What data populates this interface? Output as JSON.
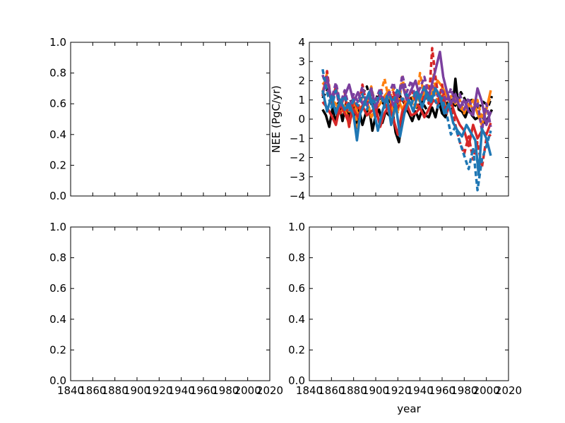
{
  "chart_data": [
    {
      "type": "line",
      "subplot": "top-left",
      "title": "",
      "xlabel": "",
      "ylabel": "",
      "xlim": [
        1840,
        2020
      ],
      "ylim": [
        0.0,
        1.0
      ],
      "xticks_visible": false,
      "yticks": [
        0.0,
        0.2,
        0.4,
        0.6,
        0.8,
        1.0
      ],
      "yticklabels": [
        "0.0",
        "0.2",
        "0.4",
        "0.6",
        "0.8",
        "1.0"
      ],
      "series": []
    },
    {
      "type": "line",
      "subplot": "top-right",
      "title": "",
      "xlabel": "",
      "ylabel": "NEE (PgC/yr)",
      "xlim": [
        1840,
        2020
      ],
      "ylim": [
        -4,
        4
      ],
      "xticks_visible": false,
      "yticks": [
        -4,
        -3,
        -2,
        -1,
        0,
        1,
        2,
        3,
        4
      ],
      "yticklabels": [
        "−4",
        "−3",
        "−2",
        "−1",
        "0",
        "1",
        "2",
        "3",
        "4"
      ],
      "grid": false,
      "legend": "none",
      "series": [
        {
          "color": "#000000",
          "dash": "solid",
          "x": [
            1852,
            1855,
            1858,
            1861,
            1864,
            1867,
            1870,
            1873,
            1876,
            1879,
            1882,
            1885,
            1888,
            1891,
            1894,
            1897,
            1900,
            1903,
            1906,
            1909,
            1912,
            1915,
            1918,
            1921,
            1924,
            1927,
            1930,
            1933,
            1936,
            1939,
            1942,
            1945,
            1948,
            1951,
            1954,
            1957,
            1960,
            1963,
            1966,
            1969,
            1972,
            1975,
            1978,
            1981,
            1984,
            1987,
            1990,
            1993,
            1996,
            1999,
            2002,
            2005
          ],
          "y": [
            0.5,
            0.2,
            -0.4,
            0.6,
            -0.2,
            0.7,
            -0.1,
            0.8,
            0.1,
            0.9,
            -0.5,
            0.5,
            -0.3,
            0.3,
            0.6,
            -0.6,
            0.2,
            0.5,
            -0.2,
            0.4,
            0.2,
            0.5,
            -0.7,
            -1.2,
            0.1,
            0.6,
            0.3,
            -0.1,
            0.4,
            0.0,
            0.5,
            0.2,
            0.1,
            0.6,
            0.1,
            0.9,
            0.3,
            0.1,
            0.7,
            0.3,
            2.1,
            0.5,
            0.4,
            0.1,
            0.6,
            0.2,
            0.0,
            0.1,
            0.2,
            -0.2,
            0.1,
            0.5
          ]
        },
        {
          "color": "#000000",
          "dash": "dashed",
          "x": [
            1852,
            1857,
            1862,
            1867,
            1872,
            1877,
            1882,
            1887,
            1892,
            1897,
            1902,
            1907,
            1912,
            1917,
            1922,
            1927,
            1932,
            1937,
            1942,
            1947,
            1952,
            1957,
            1962,
            1967,
            1972,
            1977,
            1982,
            1987,
            1992,
            1997,
            2002,
            2005
          ],
          "y": [
            1.1,
            1.6,
            0.5,
            0.9,
            0.3,
            1.0,
            0.4,
            1.2,
            1.7,
            0.6,
            1.3,
            0.8,
            1.0,
            0.5,
            1.2,
            0.7,
            1.1,
            0.6,
            0.9,
            0.4,
            1.0,
            0.8,
            0.5,
            1.1,
            0.7,
            1.4,
            0.9,
            1.0,
            0.5,
            0.9,
            0.7,
            1.2
          ]
        },
        {
          "color": "#ff7f0e",
          "dash": "solid",
          "x": [
            1852,
            1856,
            1860,
            1864,
            1868,
            1872,
            1876,
            1880,
            1884,
            1888,
            1892,
            1896,
            1900,
            1904,
            1908,
            1912,
            1916,
            1920,
            1924,
            1928,
            1932,
            1936,
            1940,
            1944,
            1948,
            1952,
            1956,
            1960,
            1964,
            1968,
            1972,
            1976,
            1980,
            1984,
            1988,
            1992,
            1996,
            2000,
            2004
          ],
          "y": [
            1.8,
            2.1,
            1.0,
            0.8,
            0.3,
            0.7,
            -0.4,
            1.0,
            0.2,
            0.6,
            1.0,
            0.1,
            0.5,
            0.8,
            1.2,
            1.5,
            0.2,
            1.1,
            0.5,
            1.0,
            0.7,
            1.3,
            0.9,
            1.6,
            1.0,
            1.5,
            2.0,
            1.7,
            1.2,
            0.8,
            1.1,
            0.6,
            0.4,
            0.7,
            1.0,
            0.3,
            -0.3,
            0.5,
            1.5
          ]
        },
        {
          "color": "#ff7f0e",
          "dash": "dashed",
          "x": [
            1852,
            1856,
            1860,
            1864,
            1868,
            1872,
            1876,
            1880,
            1884,
            1888,
            1892,
            1896,
            1900,
            1904,
            1908,
            1912,
            1916,
            1920,
            1924,
            1928,
            1932,
            1936,
            1940,
            1944,
            1948,
            1952,
            1956,
            1960,
            1964,
            1968,
            1972,
            1976,
            1980,
            1984,
            1988,
            1992,
            1996,
            2000,
            2004
          ],
          "y": [
            1.4,
            2.4,
            0.9,
            1.6,
            0.6,
            1.2,
            0.4,
            1.0,
            -0.5,
            1.4,
            0.8,
            1.7,
            0.6,
            1.2,
            2.1,
            1.0,
            1.6,
            0.3,
            2.2,
            0.9,
            1.5,
            0.5,
            2.4,
            1.1,
            1.8,
            2.3,
            0.9,
            1.6,
            0.4,
            1.2,
            0.8,
            1.0,
            0.3,
            0.9,
            0.5,
            1.0,
            0.0,
            0.6,
            1.2
          ]
        },
        {
          "color": "#d62728",
          "dash": "solid",
          "x": [
            1852,
            1856,
            1860,
            1864,
            1868,
            1872,
            1876,
            1880,
            1884,
            1888,
            1892,
            1896,
            1900,
            1904,
            1908,
            1912,
            1916,
            1920,
            1924,
            1928,
            1932,
            1936,
            1940,
            1944,
            1948,
            1952,
            1956,
            1960,
            1964,
            1968,
            1972,
            1976,
            1980,
            1984,
            1988,
            1992,
            1996,
            2000,
            2004
          ],
          "y": [
            0.9,
            0.6,
            0.2,
            -0.3,
            0.8,
            0.3,
            -0.2,
            0.5,
            0.1,
            0.7,
            0.2,
            0.4,
            0.6,
            -0.4,
            0.3,
            0.7,
            0.0,
            -0.8,
            0.4,
            0.8,
            0.2,
            0.3,
            0.6,
            0.1,
            0.5,
            1.0,
            0.8,
            1.2,
            0.3,
            0.9,
            0.2,
            -0.3,
            -0.6,
            -1.4,
            -0.3,
            -1.0,
            -0.6,
            -0.8,
            -0.2
          ]
        },
        {
          "color": "#d62728",
          "dash": "dashed",
          "x": [
            1852,
            1856,
            1860,
            1864,
            1868,
            1872,
            1876,
            1880,
            1884,
            1888,
            1892,
            1896,
            1900,
            1904,
            1908,
            1912,
            1916,
            1920,
            1924,
            1928,
            1932,
            1936,
            1940,
            1944,
            1948,
            1951,
            1954,
            1957,
            1960,
            1964,
            1968,
            1972,
            1976,
            1980,
            1984,
            1988,
            1992,
            1996,
            2000,
            2004
          ],
          "y": [
            1.2,
            2.5,
            0.8,
            1.7,
            0.3,
            1.4,
            -0.4,
            1.1,
            0.5,
            1.8,
            0.7,
            1.3,
            0.2,
            1.6,
            0.9,
            0.3,
            1.4,
            0.6,
            1.2,
            0.4,
            1.6,
            1.0,
            0.5,
            1.3,
            0.8,
            3.7,
            2.2,
            1.0,
            1.8,
            0.4,
            0.9,
            -0.3,
            -1.2,
            -1.8,
            -0.9,
            -2.1,
            -1.2,
            -2.5,
            -1.0,
            -0.8
          ]
        },
        {
          "color": "#7b3f9e",
          "dash": "solid",
          "x": [
            1852,
            1856,
            1860,
            1864,
            1868,
            1872,
            1876,
            1880,
            1884,
            1888,
            1892,
            1896,
            1900,
            1904,
            1908,
            1912,
            1916,
            1920,
            1924,
            1928,
            1932,
            1936,
            1940,
            1944,
            1948,
            1952,
            1955,
            1958,
            1961,
            1964,
            1968,
            1972,
            1976,
            1980,
            1984,
            1988,
            1992,
            1996,
            2000,
            2004
          ],
          "y": [
            1.3,
            2.2,
            1.0,
            1.5,
            0.7,
            1.2,
            1.8,
            0.9,
            1.4,
            0.8,
            1.1,
            1.6,
            0.6,
            1.3,
            0.9,
            1.4,
            0.7,
            1.2,
            1.8,
            1.0,
            1.5,
            2.0,
            1.1,
            1.7,
            1.2,
            2.1,
            2.8,
            3.5,
            2.2,
            1.5,
            0.8,
            1.3,
            0.6,
            1.0,
            0.4,
            0.2,
            1.6,
            0.9,
            -0.3,
            0.4
          ]
        },
        {
          "color": "#7b3f9e",
          "dash": "dashed",
          "x": [
            1852,
            1856,
            1860,
            1864,
            1868,
            1872,
            1876,
            1880,
            1884,
            1888,
            1892,
            1896,
            1900,
            1904,
            1908,
            1912,
            1916,
            1920,
            1924,
            1928,
            1932,
            1936,
            1940,
            1944,
            1948,
            1952,
            1956,
            1960,
            1964,
            1968,
            1972,
            1976,
            1980,
            1984,
            1988,
            1992,
            1996,
            2000,
            2004
          ],
          "y": [
            2.3,
            1.6,
            1.0,
            1.9,
            0.8,
            1.5,
            0.6,
            1.3,
            0.9,
            1.7,
            0.7,
            1.4,
            1.0,
            1.6,
            0.8,
            1.3,
            1.9,
            0.9,
            2.3,
            1.4,
            2.0,
            1.1,
            1.6,
            2.2,
            1.3,
            1.8,
            1.2,
            1.5,
            0.9,
            1.6,
            0.8,
            1.3,
            0.5,
            1.1,
            0.4,
            0.9,
            -0.6,
            0.8,
            -0.4
          ]
        },
        {
          "color": "#1f77b4",
          "dash": "solid",
          "x": [
            1852,
            1856,
            1860,
            1864,
            1868,
            1872,
            1876,
            1880,
            1883,
            1886,
            1890,
            1894,
            1898,
            1902,
            1906,
            1910,
            1914,
            1918,
            1922,
            1926,
            1930,
            1934,
            1938,
            1942,
            1946,
            1950,
            1954,
            1958,
            1962,
            1966,
            1970,
            1974,
            1978,
            1982,
            1986,
            1990,
            1993,
            1996,
            2000,
            2004
          ],
          "y": [
            1.5,
            0.4,
            1.2,
            0.3,
            1.0,
            0.5,
            0.8,
            0.2,
            -1.1,
            0.3,
            0.8,
            1.4,
            0.5,
            -0.6,
            0.4,
            1.2,
            -0.3,
            0.8,
            -0.9,
            0.3,
            1.0,
            0.4,
            1.3,
            0.6,
            1.4,
            0.9,
            1.6,
            1.2,
            0.3,
            0.8,
            -0.2,
            -0.6,
            -0.9,
            -0.3,
            -0.7,
            -1.1,
            -2.9,
            -0.5,
            -1.0,
            -1.9
          ]
        },
        {
          "color": "#1f77b4",
          "dash": "dashed",
          "x": [
            1852,
            1856,
            1860,
            1864,
            1868,
            1872,
            1876,
            1880,
            1884,
            1888,
            1892,
            1896,
            1900,
            1904,
            1908,
            1912,
            1916,
            1920,
            1924,
            1928,
            1932,
            1936,
            1940,
            1944,
            1948,
            1952,
            1956,
            1960,
            1964,
            1968,
            1972,
            1976,
            1980,
            1984,
            1988,
            1992,
            1996,
            2000,
            2004
          ],
          "y": [
            2.6,
            1.4,
            0.6,
            1.5,
            0.9,
            1.2,
            0.4,
            1.0,
            0.7,
            1.3,
            0.5,
            1.1,
            0.8,
            1.4,
            0.6,
            1.2,
            0.9,
            1.6,
            1.0,
            1.3,
            0.7,
            1.5,
            1.1,
            1.7,
            0.9,
            1.4,
            0.6,
            1.1,
            0.3,
            -0.8,
            -0.4,
            -1.2,
            -1.9,
            -2.6,
            -1.5,
            -3.7,
            -2.1,
            -1.4,
            -0.6
          ]
        }
      ]
    },
    {
      "type": "line",
      "subplot": "bottom-left",
      "title": "",
      "xlabel": "",
      "ylabel": "",
      "xlim": [
        1840,
        2020
      ],
      "ylim": [
        0.0,
        1.0
      ],
      "xticks": [
        1840,
        1860,
        1880,
        1900,
        1920,
        1940,
        1960,
        1980,
        2000,
        2020
      ],
      "xticklabels": [
        "1840",
        "1860",
        "1880",
        "1900",
        "1920",
        "1940",
        "1960",
        "1980",
        "2000",
        "2020"
      ],
      "yticks": [
        0.0,
        0.2,
        0.4,
        0.6,
        0.8,
        1.0
      ],
      "yticklabels": [
        "0.0",
        "0.2",
        "0.4",
        "0.6",
        "0.8",
        "1.0"
      ],
      "series": []
    },
    {
      "type": "line",
      "subplot": "bottom-right",
      "title": "",
      "xlabel": "year",
      "ylabel": "",
      "xlim": [
        1840,
        2020
      ],
      "ylim": [
        0.0,
        1.0
      ],
      "xticks": [
        1840,
        1860,
        1880,
        1900,
        1920,
        1940,
        1960,
        1980,
        2000,
        2020
      ],
      "xticklabels": [
        "1840",
        "1860",
        "1880",
        "1900",
        "1920",
        "1940",
        "1960",
        "1980",
        "2000",
        "2020"
      ],
      "yticks": [
        0.0,
        0.2,
        0.4,
        0.6,
        0.8,
        1.0
      ],
      "yticklabels": [
        "0.0",
        "0.2",
        "0.4",
        "0.6",
        "0.8",
        "1.0"
      ],
      "series": []
    }
  ]
}
